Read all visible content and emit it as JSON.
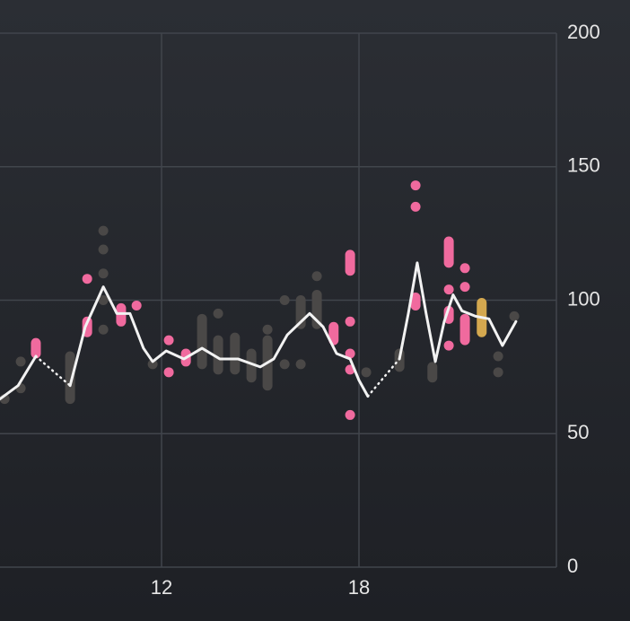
{
  "chart_data": {
    "type": "line",
    "xlim": [
      7.09,
      24
    ],
    "xticks": [
      12,
      18
    ],
    "ylim": [
      0,
      200
    ],
    "yticks": [
      0,
      50,
      100,
      150,
      200
    ],
    "grid": true,
    "series": [
      {
        "color": "#f2f2f2",
        "style": "solid",
        "x": [
          7.09,
          7.64,
          8.18
        ],
        "values": [
          63,
          68,
          79
        ]
      },
      {
        "color": "#f2f2f2",
        "style": "dotted",
        "x": [
          8.18,
          9.22
        ],
        "values": [
          79,
          68
        ]
      },
      {
        "color": "#f2f2f2",
        "style": "solid",
        "x": [
          9.22,
          9.68,
          10.23,
          10.64,
          11.04,
          11.45,
          11.73,
          12.14,
          12.68,
          13.23,
          13.77,
          14.32,
          15.0,
          15.41,
          15.82,
          16.5,
          16.91,
          17.32,
          17.73,
          18.0,
          18.27
        ],
        "values": [
          68,
          90,
          105,
          95,
          95,
          82,
          77,
          81,
          78,
          82,
          78,
          78,
          75,
          78,
          87,
          95,
          90,
          80,
          78,
          70,
          64
        ]
      },
      {
        "color": "#f2f2f2",
        "style": "dotted",
        "x": [
          18.27,
          19.23
        ],
        "values": [
          64,
          78
        ]
      },
      {
        "color": "#f2f2f2",
        "style": "solid",
        "x": [
          19.23,
          19.5,
          19.77,
          20.04,
          20.32,
          20.59,
          20.86,
          21.13,
          21.54,
          21.95,
          22.36,
          22.77
        ],
        "values": [
          78,
          95,
          114,
          95,
          77,
          92,
          102,
          96,
          94,
          93,
          83,
          92
        ]
      }
    ],
    "markers": [
      {
        "color": "#f06a9e",
        "x": [
          9.74,
          11.24,
          12.22,
          12.22,
          17.73,
          17.73,
          17.73,
          17.73,
          19.72,
          19.72,
          20.73,
          20.73,
          21.22,
          21.22
        ],
        "values": [
          108,
          98,
          85,
          73,
          92,
          80,
          74,
          57,
          143,
          135,
          104,
          83,
          112,
          105
        ]
      },
      {
        "color": "#4a4847",
        "x": [
          7.23,
          7.72,
          7.72,
          10.23,
          10.23,
          10.23,
          10.23,
          10.23,
          11.73,
          13.72,
          15.22,
          15.74,
          15.74,
          16.23,
          16.72,
          18.22,
          22.23,
          22.23,
          22.72
        ],
        "values": [
          63,
          77,
          67,
          126,
          119,
          110,
          100,
          89,
          76,
          95,
          89,
          100,
          76,
          76,
          109,
          73,
          79,
          73,
          94
        ]
      }
    ],
    "ranges": [
      {
        "color": "#f06a9e",
        "x": [
          8.18,
          9.74,
          10.77,
          12.74,
          17.73,
          17.23,
          19.72,
          20.73,
          20.73,
          21.22
        ],
        "low": [
          80,
          88,
          92,
          77,
          111,
          85,
          98,
          114,
          93,
          85
        ],
        "high": [
          84,
          92,
          97,
          80,
          117,
          90,
          101,
          122,
          96,
          93
        ]
      },
      {
        "color": "#d4a84f",
        "x": [
          21.73
        ],
        "low": [
          88
        ],
        "high": [
          99
        ]
      },
      {
        "color": "#4a4847",
        "x": [
          9.22,
          13.23,
          13.72,
          14.23,
          14.73,
          15.22,
          16.23,
          16.72,
          19.23,
          20.23
        ],
        "low": [
          63,
          76,
          74,
          74,
          71,
          68,
          91,
          91,
          75,
          71
        ],
        "high": [
          79,
          93,
          85,
          86,
          80,
          85,
          100,
          102,
          80,
          75
        ]
      }
    ]
  }
}
